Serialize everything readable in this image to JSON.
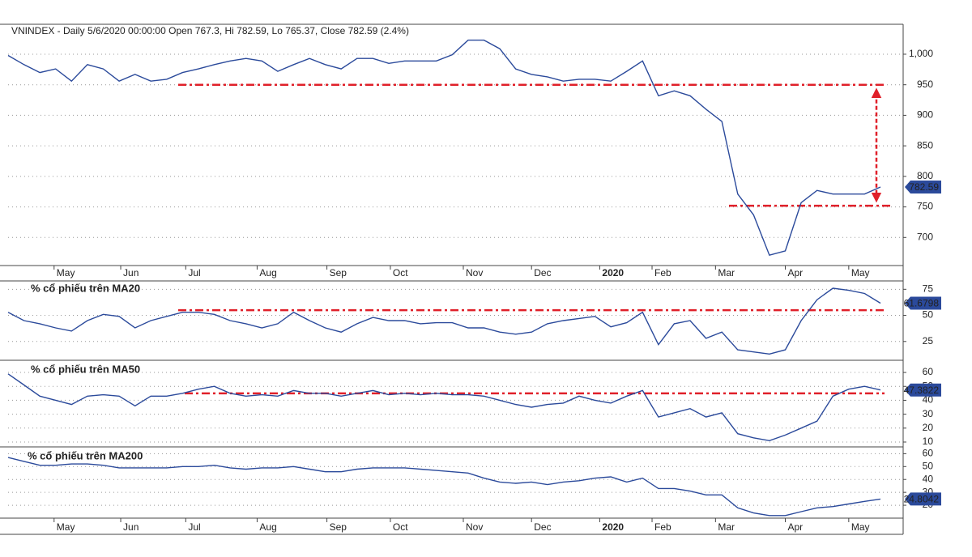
{
  "chart_data": [
    {
      "type": "line",
      "title": "VNINDEX - Daily 5/6/2020 00:00:00 Open 767.3, Hi 782.59, Lo 765.37, Close 782.59 (2.4%)",
      "title_color": "#000000",
      "color": "#2b4a9b",
      "reference_color": "#e0202a",
      "grid": true,
      "values": [
        998,
        983,
        970,
        976,
        956,
        983,
        976,
        956,
        967,
        956,
        959,
        970,
        976,
        983,
        989,
        993,
        989,
        972,
        983,
        993,
        983,
        976,
        993,
        993,
        985,
        989,
        989,
        989,
        999,
        1023,
        1023,
        1009,
        976,
        967,
        963,
        956,
        959,
        959,
        956,
        972,
        989,
        932,
        940,
        932,
        910,
        890,
        771,
        737,
        671,
        678,
        757,
        777,
        771,
        771,
        771,
        782.59
      ],
      "ylim": [
        654,
        1049
      ],
      "yticks": [
        700,
        750,
        800,
        850,
        900,
        950,
        {
          "value": 1000,
          "label": "1,000"
        }
      ],
      "reference_lines": [
        950,
        752
      ],
      "xlim": [
        0,
        55
      ],
      "xticks": [
        {
          "value": 2.9,
          "label": "May"
        },
        {
          "value": 7.1,
          "label": "Jun"
        },
        {
          "value": 11.2,
          "label": "Jul"
        },
        {
          "value": 15.7,
          "label": "Aug"
        },
        {
          "value": 20.1,
          "label": "Sep"
        },
        {
          "value": 24.1,
          "label": "Oct"
        },
        {
          "value": 28.7,
          "label": "Nov"
        },
        {
          "value": 33.0,
          "label": "Dec"
        },
        {
          "value": 37.3,
          "label": "2020",
          "bold": true
        },
        {
          "value": 40.6,
          "label": "Feb"
        },
        {
          "value": 44.6,
          "label": "Mar"
        },
        {
          "value": 49.0,
          "label": "Apr"
        },
        {
          "value": 53.0,
          "label": "May"
        }
      ]
    },
    {
      "type": "line",
      "title": "% cổ phiếu trên MA20",
      "title_color": "#1ea340",
      "color": "#2b4a9b",
      "reference_color": "#e0202a",
      "grid": true,
      "values": [
        53,
        45,
        42,
        38,
        35,
        45,
        51,
        49,
        38,
        45,
        49,
        53,
        53,
        51,
        45,
        42,
        38,
        42,
        53,
        45,
        38,
        34,
        42,
        48,
        45,
        45,
        42,
        43,
        43,
        38,
        38,
        34,
        32,
        34,
        42,
        45,
        47,
        49,
        39,
        43,
        53,
        22,
        42,
        45,
        28,
        34,
        17,
        15,
        13,
        17,
        45,
        65,
        76,
        74,
        71,
        61.6798
      ],
      "ylim": [
        7,
        83
      ],
      "yticks": [
        25,
        50,
        75
      ],
      "reference_lines": [
        55
      ],
      "xlim": [
        0,
        55
      ]
    },
    {
      "type": "line",
      "title": "% cổ phiếu trên MA50",
      "title_color": "#1ea340",
      "color": "#2b4a9b",
      "reference_color": "#e0202a",
      "grid": true,
      "values": [
        59,
        51,
        43,
        40,
        37,
        43,
        44,
        43,
        36,
        43,
        43,
        45,
        48,
        50,
        45,
        43,
        44,
        43,
        47,
        45,
        45,
        43,
        45,
        47,
        44,
        45,
        44,
        45,
        44,
        44,
        43,
        40,
        37,
        35,
        37,
        38,
        43,
        40,
        38,
        43,
        47,
        28,
        31,
        34,
        28,
        31,
        16,
        13,
        11,
        15,
        20,
        25,
        43,
        48,
        50,
        47.3822
      ],
      "ylim": [
        6.5,
        67.6
      ],
      "yticks": [
        10,
        20,
        30,
        40,
        50,
        60
      ],
      "reference_lines": [
        45
      ],
      "xlim": [
        0,
        55
      ]
    },
    {
      "type": "line",
      "title": "% cổ phiếu trên MA200",
      "title_color": "#1ea340",
      "color": "#2b4a9b",
      "grid": true,
      "values": [
        57,
        54,
        51,
        51,
        52,
        52,
        51,
        49,
        49,
        49,
        49,
        50,
        50,
        51,
        49,
        48,
        49,
        49,
        50,
        48,
        46,
        46,
        48,
        49,
        49,
        49,
        48,
        47,
        46,
        45,
        41,
        38,
        37,
        38,
        36,
        38,
        39,
        41,
        42,
        38,
        41,
        33,
        33,
        31,
        28,
        28,
        18,
        14,
        12,
        12,
        15,
        18,
        19,
        21,
        23,
        24.8042
      ],
      "ylim": [
        10,
        64
      ],
      "yticks": [
        20,
        30,
        40,
        50,
        60
      ],
      "xlim": [
        0,
        55
      ],
      "xticks": [
        {
          "value": 2.9,
          "label": "May"
        },
        {
          "value": 7.1,
          "label": "Jun"
        },
        {
          "value": 11.2,
          "label": "Jul"
        },
        {
          "value": 15.7,
          "label": "Aug"
        },
        {
          "value": 20.1,
          "label": "Sep"
        },
        {
          "value": 24.1,
          "label": "Oct"
        },
        {
          "value": 28.7,
          "label": "Nov"
        },
        {
          "value": 33.0,
          "label": "Dec"
        },
        {
          "value": 37.3,
          "label": "2020",
          "bold": true
        },
        {
          "value": 40.6,
          "label": "Feb"
        },
        {
          "value": 44.6,
          "label": "Mar"
        },
        {
          "value": 49.0,
          "label": "Apr"
        },
        {
          "value": 53.0,
          "label": "May"
        }
      ]
    }
  ]
}
